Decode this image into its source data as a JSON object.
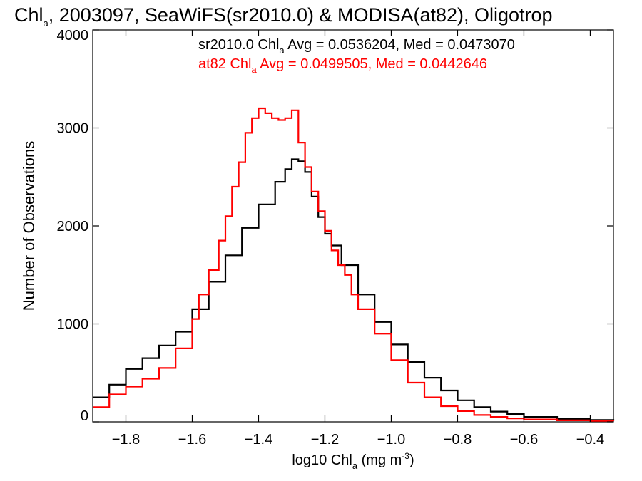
{
  "chart_data": {
    "type": "line",
    "title": {
      "prefix": "Chl",
      "sub": "a",
      "rest": ", 2003097, SeaWiFS(sr2010.0) & MODISA(at82), Oligotrop"
    },
    "xlabel": {
      "pre": "log10 Chl",
      "sub": "a",
      "mid": " (mg m",
      "sup": "-3",
      "post": ")"
    },
    "ylabel": "Number of Observations",
    "xlim": [
      -1.9,
      -0.33
    ],
    "ylim": [
      0,
      4000
    ],
    "xticks": [
      -1.8,
      -1.6,
      -1.4,
      -1.2,
      -1.0,
      -0.8,
      -0.6,
      -0.4
    ],
    "xtick_labels": [
      "−1.8",
      "−1.6",
      "−1.4",
      "−1.2",
      "−1.0",
      "−0.8",
      "−0.6",
      "−0.4"
    ],
    "yticks": [
      0,
      1000,
      2000,
      3000,
      4000
    ],
    "ytick_labels": [
      "0",
      "1000",
      "2000",
      "3000",
      "4000"
    ],
    "step": "histogram",
    "series": [
      {
        "name": "sr2010.0",
        "color": "#000000",
        "legend": {
          "pre": "sr2010.0 Chl",
          "sub": "a",
          "post": " Avg = 0.0536204, Med = 0.0473070"
        },
        "x": [
          -1.9,
          -1.85,
          -1.8,
          -1.75,
          -1.7,
          -1.65,
          -1.6,
          -1.55,
          -1.5,
          -1.45,
          -1.4,
          -1.35,
          -1.32,
          -1.3,
          -1.28,
          -1.26,
          -1.24,
          -1.22,
          -1.2,
          -1.18,
          -1.15,
          -1.1,
          -1.05,
          -1.0,
          -0.95,
          -0.9,
          -0.85,
          -0.8,
          -0.75,
          -0.7,
          -0.65,
          -0.6,
          -0.5,
          -0.4,
          -0.33
        ],
        "values": [
          250,
          380,
          540,
          650,
          780,
          920,
          1150,
          1430,
          1700,
          1980,
          2220,
          2450,
          2580,
          2680,
          2660,
          2550,
          2300,
          2090,
          1920,
          1800,
          1600,
          1300,
          1020,
          790,
          610,
          450,
          320,
          220,
          150,
          105,
          80,
          50,
          30,
          20,
          15
        ]
      },
      {
        "name": "at82",
        "color": "#ff0000",
        "legend": {
          "pre": "at82 Chl",
          "sub": "a",
          "post": " Avg = 0.0499505, Med = 0.0442646"
        },
        "x": [
          -1.9,
          -1.85,
          -1.8,
          -1.75,
          -1.7,
          -1.65,
          -1.6,
          -1.58,
          -1.55,
          -1.52,
          -1.5,
          -1.48,
          -1.46,
          -1.44,
          -1.42,
          -1.4,
          -1.38,
          -1.36,
          -1.34,
          -1.32,
          -1.3,
          -1.28,
          -1.26,
          -1.24,
          -1.22,
          -1.2,
          -1.18,
          -1.16,
          -1.14,
          -1.12,
          -1.1,
          -1.05,
          -1.0,
          -0.95,
          -0.9,
          -0.85,
          -0.8,
          -0.75,
          -0.7,
          -0.65,
          -0.6,
          -0.5,
          -0.4,
          -0.33
        ],
        "values": [
          150,
          280,
          360,
          440,
          550,
          750,
          1050,
          1300,
          1550,
          1850,
          2100,
          2400,
          2650,
          2950,
          3100,
          3200,
          3150,
          3100,
          3080,
          3100,
          3180,
          2850,
          2600,
          2350,
          2150,
          1950,
          1750,
          1600,
          1500,
          1300,
          1150,
          900,
          630,
          400,
          250,
          160,
          110,
          70,
          50,
          35,
          25,
          15,
          10,
          8
        ]
      }
    ],
    "grid": false,
    "legend_position": "top-center"
  }
}
